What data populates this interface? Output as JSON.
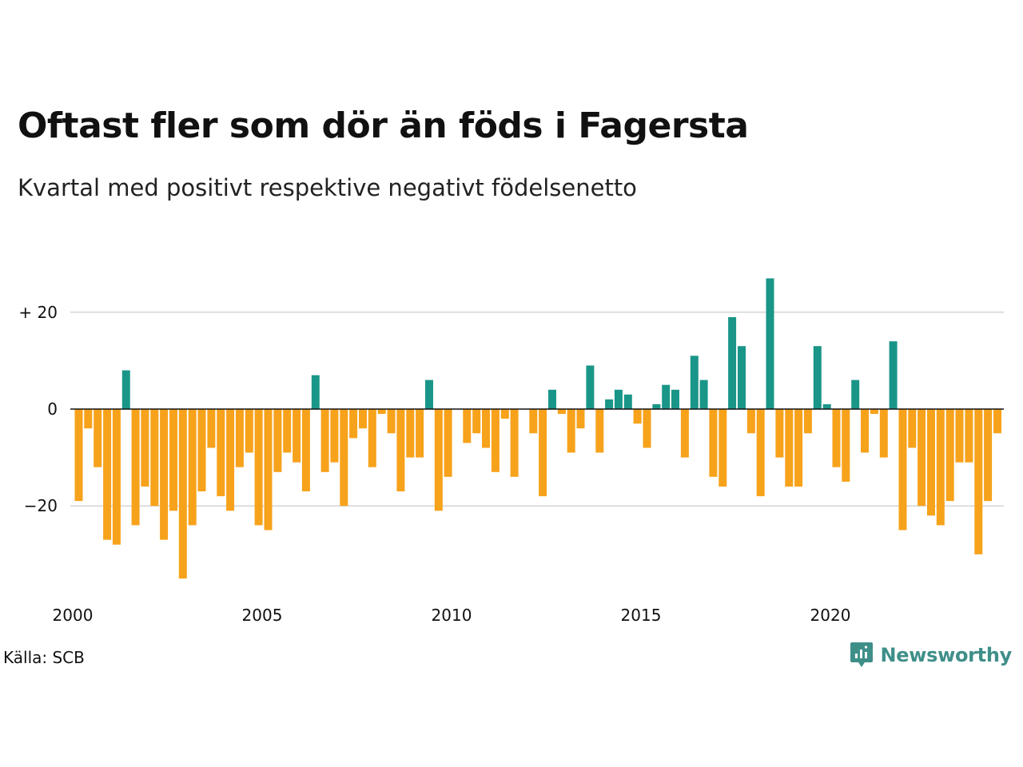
{
  "title": "Oftast fler som dör än föds i Fagersta",
  "subtitle": "Kvartal med positivt respektive negativt födelsenetto",
  "source": "Källa: SCB",
  "brand": {
    "name": "Newsworthy",
    "icon": "newsworthy-logo-icon",
    "color": "#3f8f89"
  },
  "colors": {
    "positive": "#1a9688",
    "negative": "#f7a21b",
    "grid": "#dddddd",
    "zero_line": "#111111"
  },
  "chart_data": {
    "type": "bar",
    "ylim": [
      -38,
      30
    ],
    "y_ticks": [
      {
        "value": 20,
        "label": "+ 20"
      },
      {
        "value": 0,
        "label": "0"
      },
      {
        "value": -20,
        "label": "−20"
      }
    ],
    "x_ticks": [
      {
        "value": 2000,
        "label": "2000"
      },
      {
        "value": 2005,
        "label": "2005"
      },
      {
        "value": 2010,
        "label": "2010"
      },
      {
        "value": 2015,
        "label": "2015"
      },
      {
        "value": 2020,
        "label": "2020"
      }
    ],
    "grid": true,
    "series": [
      {
        "start": "2000 Q1",
        "values": [
          -19,
          -4,
          -12,
          -27,
          -28,
          8,
          -24,
          -16,
          -20,
          -27,
          -21,
          -35,
          -24,
          -17,
          -8,
          -18,
          -21,
          -12,
          -9,
          -24,
          -25,
          -13,
          -9,
          -11,
          -17,
          7,
          -13,
          -11,
          -20,
          -6,
          -4,
          -12,
          -1,
          -5,
          -17,
          -10,
          -10,
          6,
          -21,
          -14,
          0,
          -7,
          -5,
          -8,
          -13,
          -2,
          -14,
          0,
          -5,
          -18,
          4,
          -1,
          -9,
          -4,
          9,
          -9,
          2,
          4,
          3,
          -3,
          -8,
          1,
          5,
          4,
          -10,
          11,
          6,
          -14,
          -16,
          19,
          13,
          -5,
          -18,
          27,
          -10,
          -16,
          -16,
          -5,
          13,
          1,
          -12,
          -15,
          6,
          -9,
          -1,
          -10,
          14,
          -25,
          -8,
          -20,
          -22,
          -24,
          -19,
          -11,
          -11,
          -30,
          -19,
          -5
        ]
      }
    ]
  }
}
